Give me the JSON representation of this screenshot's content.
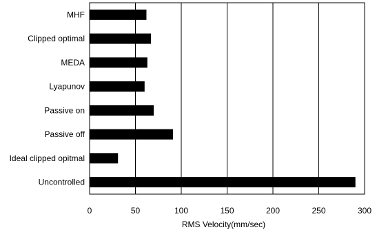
{
  "chart_data": {
    "type": "bar",
    "orientation": "horizontal",
    "categories": [
      "MHF",
      "Clipped optimal",
      "MEDA",
      "Lyapunov",
      "Passive on",
      "Passive off",
      "Ideal clipped opitmal",
      "Uncontrolled"
    ],
    "values": [
      62,
      67,
      63,
      60,
      70,
      91,
      31,
      290
    ],
    "xlabel": "RMS Velocity(mm/sec)",
    "ylabel": "",
    "title": "",
    "xlim": [
      0,
      300
    ],
    "xticks": [
      0,
      50,
      100,
      150,
      200,
      250,
      300
    ],
    "grid": "vertical",
    "legend": "none",
    "bar_color": "#000000"
  }
}
